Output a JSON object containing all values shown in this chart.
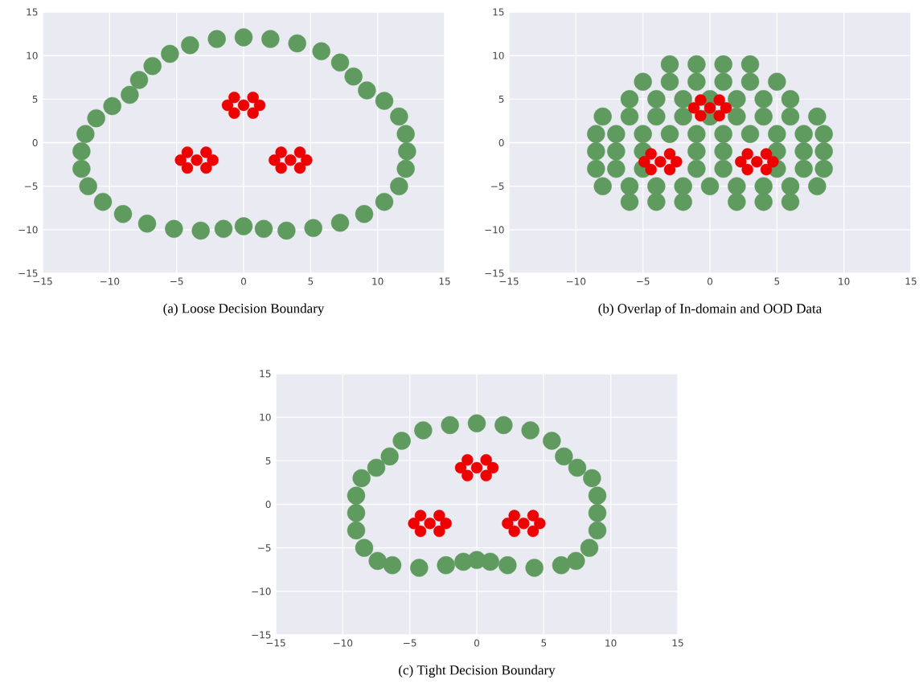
{
  "chart_data": [
    {
      "type": "scatter",
      "title": "(a) Loose Decision Boundary",
      "marker": "circle",
      "grid": true,
      "xlim": [
        -15,
        15
      ],
      "ylim": [
        -15,
        15
      ],
      "xticks": [
        {
          "value": -15,
          "label": "−15"
        },
        {
          "value": -10,
          "label": "−10"
        },
        {
          "value": -5,
          "label": "−5"
        },
        0,
        5,
        10,
        15
      ],
      "yticks": [
        {
          "value": -15,
          "label": "−15"
        },
        {
          "value": -10,
          "label": "−10"
        },
        {
          "value": -5,
          "label": "−5"
        },
        0,
        5,
        10,
        15
      ],
      "series": [
        {
          "color": "#5f9a5f",
          "x": [
            0,
            2,
            4,
            5.8,
            7.2,
            8.2,
            9.2,
            10.5,
            11.6,
            12.1,
            12.2,
            12.1,
            11.6,
            10.5,
            9,
            7.2,
            5.2,
            3.2,
            1.5,
            0,
            -1.5,
            -3.2,
            -5.2,
            -7.2,
            -9,
            -10.5,
            -11.6,
            -12.1,
            -12.1,
            -11.8,
            -11,
            -9.8,
            -8.5,
            -7.8,
            -6.8,
            -5.5,
            -4,
            -2
          ],
          "values": [
            12.1,
            11.9,
            11.4,
            10.5,
            9.2,
            7.6,
            6,
            4.8,
            3,
            1,
            -1,
            -3,
            -5,
            -6.8,
            -8.2,
            -9.2,
            -9.8,
            -10.1,
            -9.9,
            -9.6,
            -9.9,
            -10.1,
            -9.9,
            -9.3,
            -8.2,
            -6.8,
            -5,
            -3,
            -1,
            1,
            2.8,
            4.2,
            5.5,
            7.2,
            8.8,
            10.2,
            11.2,
            11.9
          ]
        },
        {
          "color": "#ee0000",
          "x": [
            0,
            -1.2,
            1.2,
            -0.7,
            0.7,
            -0.7,
            0.7,
            -3.5,
            -4.7,
            -2.3,
            -4.2,
            -2.8,
            -4.2,
            -2.8,
            3.5,
            2.3,
            4.7,
            2.8,
            4.2,
            2.8,
            4.2
          ],
          "values": [
            4.3,
            4.3,
            4.3,
            3.4,
            3.4,
            5.2,
            5.2,
            -2,
            -2,
            -2,
            -2.9,
            -2.9,
            -1.1,
            -1.1,
            -2,
            -2,
            -2,
            -2.9,
            -2.9,
            -1.1,
            -1.1
          ]
        }
      ]
    },
    {
      "type": "scatter",
      "title": "(b) Overlap of In-domain and OOD Data",
      "marker": "circle",
      "grid": true,
      "xlim": [
        -15,
        15
      ],
      "ylim": [
        -15,
        15
      ],
      "xticks": [
        {
          "value": -15,
          "label": "−15"
        },
        {
          "value": -10,
          "label": "−10"
        },
        {
          "value": -5,
          "label": "−5"
        },
        0,
        5,
        10,
        15
      ],
      "yticks": [
        {
          "value": -15,
          "label": "−15"
        },
        {
          "value": -10,
          "label": "−10"
        },
        {
          "value": -5,
          "label": "−5"
        },
        0,
        5,
        10,
        15
      ],
      "series": [
        {
          "color": "#5f9a5f",
          "x": [
            -3,
            -1,
            1,
            3,
            -5,
            -3,
            -1,
            1,
            3,
            5,
            -6,
            -4,
            -2,
            0,
            2,
            4,
            6,
            -8,
            -6,
            -4,
            -2,
            0,
            2,
            4,
            6,
            8,
            -8.5,
            -7,
            -5,
            -3,
            -1,
            1,
            3,
            5,
            7,
            8.5,
            -8.5,
            -7,
            -5,
            -1,
            1,
            5,
            7,
            8.5,
            -8.5,
            -7,
            -5,
            -1,
            1,
            5,
            7,
            8.5,
            -8,
            -6,
            -4,
            -2,
            0,
            2,
            4,
            6,
            8,
            -6,
            -4,
            -2,
            2,
            4,
            6
          ],
          "values": [
            9,
            9,
            9,
            9,
            7,
            7,
            7,
            7,
            7,
            7,
            5,
            5,
            5,
            5,
            5,
            5,
            5,
            3,
            3,
            3,
            3,
            3,
            3,
            3,
            3,
            3,
            1,
            1,
            1,
            1,
            1,
            1,
            1,
            1,
            1,
            1,
            -1,
            -1,
            -1,
            -1,
            -1,
            -1,
            -1,
            -1,
            -3,
            -3,
            -3,
            -3,
            -3,
            -3,
            -3,
            -3,
            -5,
            -5,
            -5,
            -5,
            -5,
            -5,
            -5,
            -5,
            -5,
            -6.8,
            -6.8,
            -6.8,
            -6.8,
            -6.8,
            -6.8
          ]
        },
        {
          "color": "#ee0000",
          "x": [
            0,
            -1.2,
            1.2,
            -0.7,
            0.7,
            -0.7,
            0.7,
            -3.7,
            -4.9,
            -2.5,
            -4.4,
            -3,
            -4.4,
            -3,
            3.5,
            2.3,
            4.7,
            2.8,
            4.2,
            2.8,
            4.2
          ],
          "values": [
            4,
            4,
            4,
            3.1,
            3.1,
            4.9,
            4.9,
            -2.2,
            -2.2,
            -2.2,
            -3.1,
            -3.1,
            -1.3,
            -1.3,
            -2.2,
            -2.2,
            -2.2,
            -3.1,
            -3.1,
            -1.3,
            -1.3
          ]
        }
      ]
    },
    {
      "type": "scatter",
      "title": "(c) Tight Decision Boundary",
      "marker": "circle",
      "grid": true,
      "xlim": [
        -15,
        15
      ],
      "ylim": [
        -15,
        15
      ],
      "xticks": [
        {
          "value": -15,
          "label": "−15"
        },
        {
          "value": -10,
          "label": "−10"
        },
        {
          "value": -5,
          "label": "−5"
        },
        0,
        5,
        10,
        15
      ],
      "yticks": [
        {
          "value": -15,
          "label": "−15"
        },
        {
          "value": -10,
          "label": "−10"
        },
        {
          "value": -5,
          "label": "−5"
        },
        0,
        5,
        10,
        15
      ],
      "series": [
        {
          "color": "#5f9a5f",
          "x": [
            0,
            2,
            4,
            5.6,
            6.5,
            7.5,
            8.6,
            9,
            9,
            9,
            8.4,
            7.4,
            6.3,
            4.3,
            2.3,
            1,
            0,
            -1,
            -2.3,
            -4.3,
            -6.3,
            -7.4,
            -8.4,
            -9,
            -9,
            -9,
            -8.6,
            -7.5,
            -6.5,
            -5.6,
            -4,
            -2
          ],
          "values": [
            9.3,
            9.1,
            8.5,
            7.3,
            5.5,
            4.2,
            3,
            1,
            -1,
            -3,
            -5,
            -6.5,
            -7,
            -7.3,
            -7,
            -6.6,
            -6.4,
            -6.6,
            -7,
            -7.3,
            -7,
            -6.5,
            -5,
            -3,
            -1,
            1,
            3,
            4.2,
            5.5,
            7.3,
            8.5,
            9.1
          ]
        },
        {
          "color": "#ee0000",
          "x": [
            0,
            -1.2,
            1.2,
            -0.7,
            0.7,
            -0.7,
            0.7,
            -3.5,
            -4.7,
            -2.3,
            -4.2,
            -2.8,
            -4.2,
            -2.8,
            3.5,
            2.3,
            4.7,
            2.8,
            4.2,
            2.8,
            4.2
          ],
          "values": [
            4.2,
            4.2,
            4.2,
            3.3,
            3.3,
            5.1,
            5.1,
            -2.2,
            -2.2,
            -2.2,
            -3.1,
            -3.1,
            -1.3,
            -1.3,
            -2.2,
            -2.2,
            -2.2,
            -3.1,
            -3.1,
            -1.3,
            -1.3
          ]
        }
      ]
    }
  ]
}
